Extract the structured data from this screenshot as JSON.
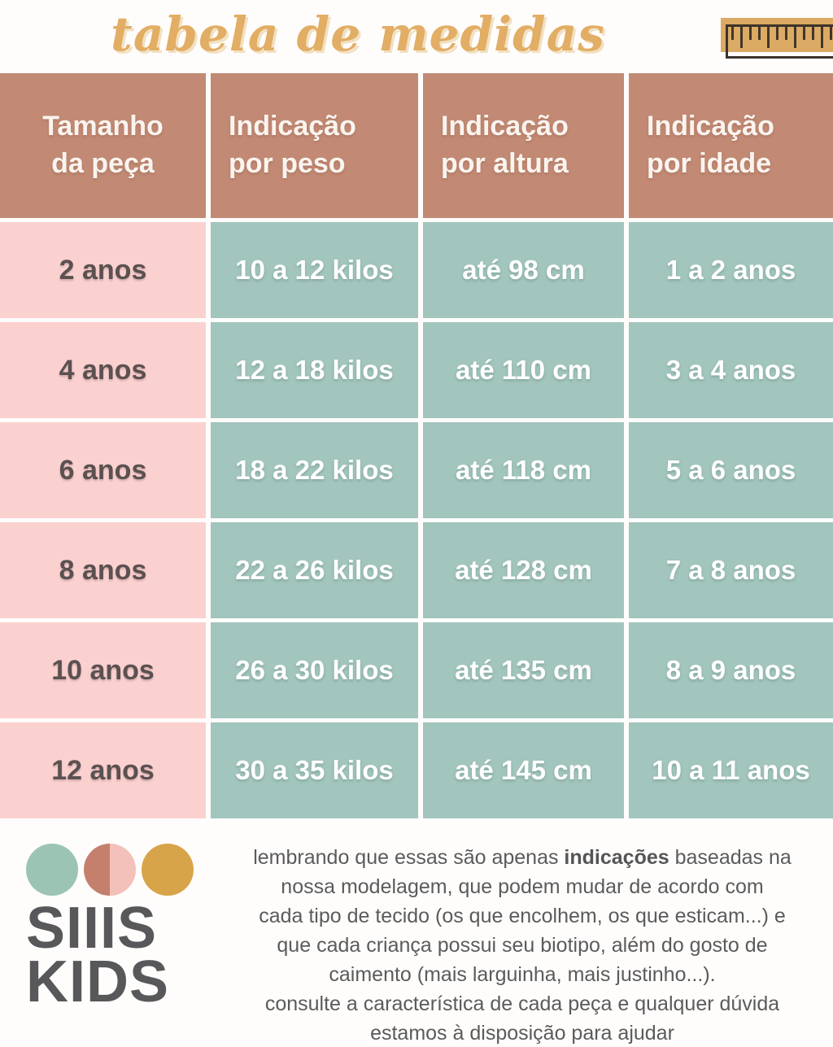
{
  "title": "tabela de medidas",
  "colors": {
    "title_gold": "#e2ad64",
    "header_bg": "#c28a74",
    "size_col_bg": "#fbd1d0",
    "data_col_bg": "#a2c5bd",
    "header_text": "#faf4ef",
    "size_text": "#5b5151",
    "data_text": "#ffffff",
    "ruler_fill": "#dbaa64",
    "logo_teal": "#9bc4b4",
    "logo_salmon": "#c4806d",
    "logo_pink": "#f3c1b9",
    "logo_gold": "#d8a449",
    "logo_text": "#58585a",
    "note_text": "#5b5b5b"
  },
  "table": {
    "headers": [
      {
        "line1": "Tamanho",
        "line2": "da peça"
      },
      {
        "line1": "Indicação",
        "line2": "por peso"
      },
      {
        "line1": "Indicação",
        "line2": "por altura"
      },
      {
        "line1": "Indicação",
        "line2": "por idade"
      }
    ],
    "rows": [
      {
        "size": "2 anos",
        "weight": "10 a 12 kilos",
        "height": "até 98 cm",
        "age": "1 a 2 anos"
      },
      {
        "size": "4 anos",
        "weight": "12 a 18 kilos",
        "height": "até 110 cm",
        "age": "3 a 4 anos"
      },
      {
        "size": "6 anos",
        "weight": "18 a 22 kilos",
        "height": "até 118 cm",
        "age": "5 a 6 anos"
      },
      {
        "size": "8 anos",
        "weight": "22 a 26  kilos",
        "height": "até 128 cm",
        "age": "7 a 8 anos"
      },
      {
        "size": "10 anos",
        "weight": "26 a 30 kilos",
        "height": "até 135 cm",
        "age": "8 a 9 anos"
      },
      {
        "size": "12 anos",
        "weight": "30 a 35 kilos",
        "height": "até 145 cm",
        "age": "10 a 11 anos"
      }
    ]
  },
  "chart_data": {
    "type": "table",
    "title": "tabela de medidas",
    "columns": [
      "Tamanho da peça",
      "Indicação por peso",
      "Indicação por altura",
      "Indicação por idade"
    ],
    "rows": [
      [
        "2 anos",
        "10 a 12 kilos",
        "até 98 cm",
        "1 a 2 anos"
      ],
      [
        "4 anos",
        "12 a 18 kilos",
        "até 110 cm",
        "3 a 4 anos"
      ],
      [
        "6 anos",
        "18 a 22 kilos",
        "até 118 cm",
        "5 a 6 anos"
      ],
      [
        "8 anos",
        "22 a 26  kilos",
        "até 128 cm",
        "7 a 8 anos"
      ],
      [
        "10 anos",
        "26 a 30 kilos",
        "até 135 cm",
        "8 a 9 anos"
      ],
      [
        "12 anos",
        "30 a 35 kilos",
        "até 145 cm",
        "10 a 11 anos"
      ]
    ]
  },
  "footer": {
    "logo_line1": "SIIIS",
    "logo_line2": "KIDS",
    "note": {
      "line1_pre": "lembrando que essas são apenas ",
      "line1_bold": "indicações",
      "line1_post": " baseadas na",
      "line2": "nossa modelagem, que podem mudar de acordo com",
      "line3": "cada tipo de tecido (os que encolhem, os que esticam...) e",
      "line4": "que cada criança possui seu biotipo, além do gosto de",
      "line5": "caimento (mais larguinha, mais justinho...).",
      "line6": "consulte a característica de cada peça e qualquer dúvida",
      "line7": "estamos à disposição para ajudar"
    }
  }
}
